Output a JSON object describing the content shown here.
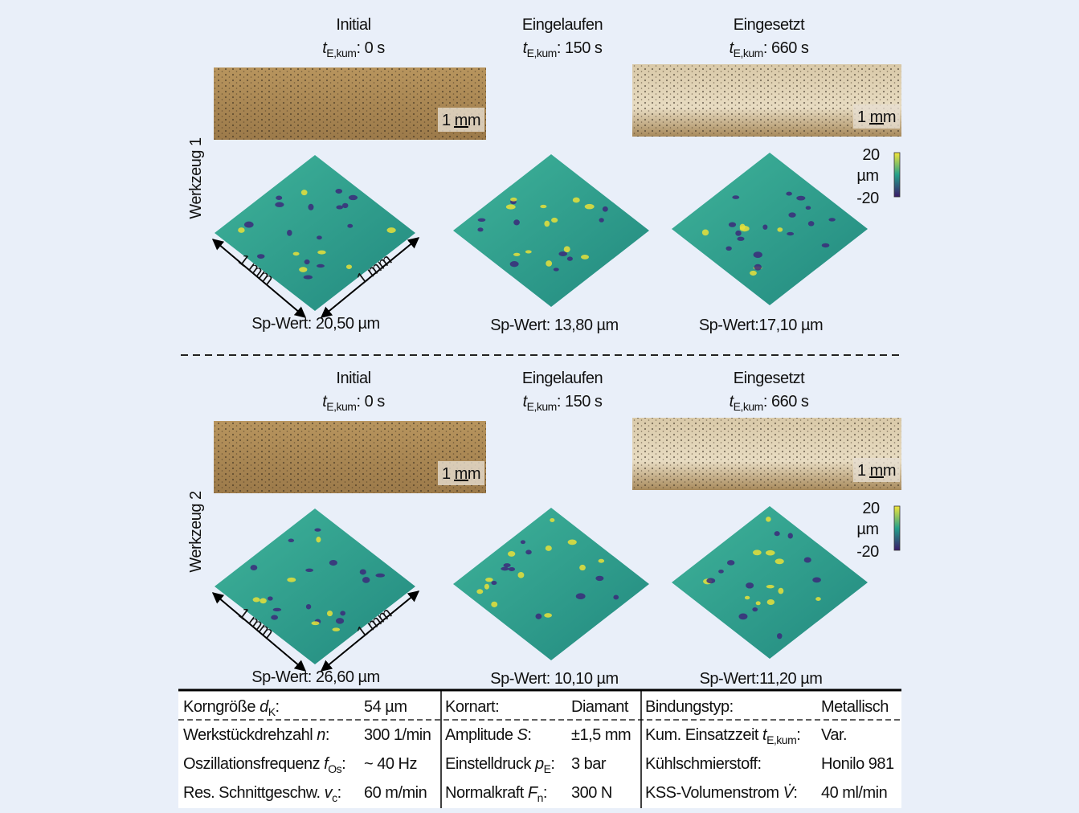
{
  "tools": [
    {
      "label": "Werkzeug 1",
      "stages": [
        {
          "title": "Initial",
          "time": {
            "sym": "t",
            "sub": "E,kum",
            "post": ": 0 s"
          },
          "scale": "1 mm",
          "dims": [
            "1 mm",
            "1 mm"
          ],
          "sp": "Sp-Wert: 20,50 µm"
        },
        {
          "title": "Eingelaufen",
          "time": {
            "sym": "t",
            "sub": "E,kum",
            "post": ": 150 s"
          },
          "sp": "Sp-Wert: 13,80 µm"
        },
        {
          "title": "Eingesetzt",
          "time": {
            "sym": "t",
            "sub": "E,kum",
            "post": ": 660 s"
          },
          "scale": "1 mm",
          "sp": "Sp-Wert:17,10 µm"
        }
      ],
      "colorbar": {
        "max": "20",
        "unit": "µm",
        "min": "-20"
      }
    },
    {
      "label": "Werkzeug 2",
      "stages": [
        {
          "title": "Initial",
          "time": {
            "sym": "t",
            "sub": "E,kum",
            "post": ": 0 s"
          },
          "scale": "1 mm",
          "dims": [
            "1 mm",
            "1 mm"
          ],
          "sp": "Sp-Wert: 26,60 µm"
        },
        {
          "title": "Eingelaufen",
          "time": {
            "sym": "t",
            "sub": "E,kum",
            "post": ": 150 s"
          },
          "sp": "Sp-Wert: 10,10 µm"
        },
        {
          "title": "Eingesetzt",
          "time": {
            "sym": "t",
            "sub": "E,kum",
            "post": ": 660 s"
          },
          "scale": "1 mm",
          "sp": "Sp-Wert:11,20 µm"
        }
      ],
      "colorbar": {
        "max": "20",
        "unit": "µm",
        "min": "-20"
      }
    }
  ],
  "table": {
    "rows": [
      [
        {
          "label": {
            "pre": "Korngröße ",
            "sym": "d",
            "sub": "K",
            "post": ":"
          },
          "value": "54 µm"
        },
        {
          "label": {
            "pre": "Kornart:"
          },
          "value": "Diamant"
        },
        {
          "label": {
            "pre": "Bindungstyp:"
          },
          "value": "Metallisch"
        }
      ],
      [
        {
          "label": {
            "pre": "Werkstückdrehzahl ",
            "sym": "n",
            "post": ":"
          },
          "value": "300 1/min"
        },
        {
          "label": {
            "pre": "Amplitude ",
            "sym": "S",
            "post": ":"
          },
          "value": "±1,5 mm"
        },
        {
          "label": {
            "pre": "Kum. Einsatzzeit ",
            "sym": "t",
            "sub": "E,kum",
            "post": ":"
          },
          "value": "Var."
        }
      ],
      [
        {
          "label": {
            "pre": "Oszillationsfrequenz ",
            "sym": "f",
            "sub": "Os",
            "post": ":"
          },
          "value": "~ 40 Hz"
        },
        {
          "label": {
            "pre": "Einstelldruck ",
            "sym": "p",
            "sub": "E",
            "post": ":"
          },
          "value": "3 bar"
        },
        {
          "label": {
            "pre": "Kühlschmierstoff:"
          },
          "value": "Honilo 981"
        }
      ],
      [
        {
          "label": {
            "pre": "Res. Schnittgeschw. ",
            "sym": "v",
            "sub": "c",
            "post": ":"
          },
          "value": "60 m/min"
        },
        {
          "label": {
            "pre": "Normalkraft ",
            "sym": "F",
            "sub": "n",
            "post": ":"
          },
          "value": "300 N"
        },
        {
          "label": {
            "pre": "KSS-Volumenstrom ",
            "sym": "V̇",
            "post": ":"
          },
          "value": "40 ml/min"
        }
      ]
    ]
  }
}
